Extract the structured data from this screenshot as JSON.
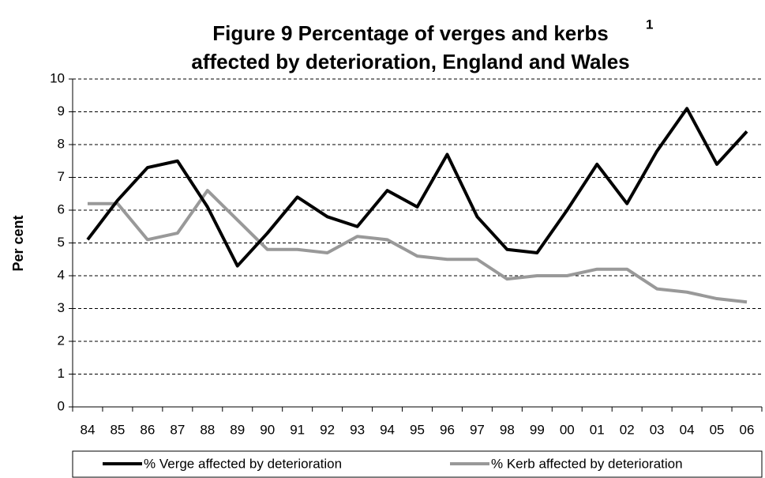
{
  "chart_data": {
    "type": "line",
    "title": [
      "Figure 9 Percentage of verges and kerbs",
      "affected by deterioration, England and Wales"
    ],
    "title_superscript": "1",
    "y_label": "Per cent",
    "categories": [
      "84",
      "85",
      "86",
      "87",
      "88",
      "89",
      "90",
      "91",
      "92",
      "93",
      "94",
      "95",
      "96",
      "97",
      "98",
      "99",
      "00",
      "01",
      "02",
      "03",
      "04",
      "05",
      "06"
    ],
    "series": [
      {
        "name": "% Verge affected by deterioration",
        "color": "#000000",
        "values": [
          5.1,
          6.3,
          7.3,
          7.5,
          6.1,
          4.3,
          5.3,
          6.4,
          5.8,
          5.5,
          6.6,
          6.1,
          7.7,
          5.8,
          4.8,
          4.7,
          6.0,
          7.4,
          6.2,
          7.8,
          9.1,
          7.4,
          8.4
        ]
      },
      {
        "name": "% Kerb affected by deterioration",
        "color": "#999999",
        "values": [
          6.2,
          6.2,
          5.1,
          5.3,
          6.6,
          5.7,
          4.8,
          4.8,
          4.7,
          5.2,
          5.1,
          4.6,
          4.5,
          4.5,
          3.9,
          4.0,
          4.0,
          4.2,
          4.2,
          3.6,
          3.5,
          3.3,
          3.2
        ]
      }
    ],
    "ylim": [
      0,
      10
    ],
    "yticks": [
      0,
      1,
      2,
      3,
      4,
      5,
      6,
      7,
      8,
      9,
      10
    ],
    "grid": true,
    "legend": "bottom"
  }
}
